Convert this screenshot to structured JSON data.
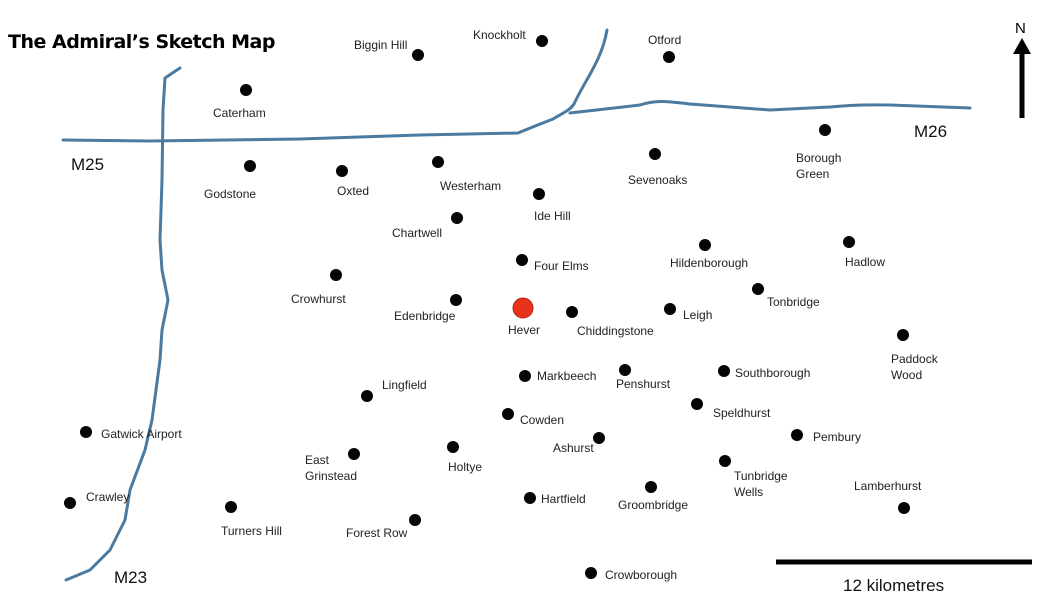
{
  "title": "The Admiral’s Sketch Map",
  "north_label": "N",
  "scale_label": "12 kilometres",
  "roads": [
    {
      "name": "M25",
      "label": "M25"
    },
    {
      "name": "M26",
      "label": "M26"
    },
    {
      "name": "M23",
      "label": "M23"
    }
  ],
  "colors": {
    "road": "#4a7aa0",
    "highlight": "#e8321c",
    "dot": "#050505"
  },
  "places": [
    {
      "name": "Biggin Hill",
      "lines": [
        "Biggin Hill"
      ]
    },
    {
      "name": "Knockholt",
      "lines": [
        "Knockholt"
      ]
    },
    {
      "name": "Otford",
      "lines": [
        "Otford"
      ]
    },
    {
      "name": "Caterham",
      "lines": [
        "Caterham"
      ]
    },
    {
      "name": "Borough Green",
      "lines": [
        "Borough",
        "Green"
      ]
    },
    {
      "name": "Godstone",
      "lines": [
        "Godstone"
      ]
    },
    {
      "name": "Oxted",
      "lines": [
        "Oxted"
      ]
    },
    {
      "name": "Westerham",
      "lines": [
        "Westerham"
      ]
    },
    {
      "name": "Sevenoaks",
      "lines": [
        "Sevenoaks"
      ]
    },
    {
      "name": "Ide Hill",
      "lines": [
        "Ide Hill"
      ]
    },
    {
      "name": "Chartwell",
      "lines": [
        "Chartwell"
      ]
    },
    {
      "name": "Four Elms",
      "lines": [
        "Four Elms"
      ]
    },
    {
      "name": "Hildenborough",
      "lines": [
        "Hildenborough"
      ]
    },
    {
      "name": "Hadlow",
      "lines": [
        "Hadlow"
      ]
    },
    {
      "name": "Crowhurst",
      "lines": [
        "Crowhurst"
      ]
    },
    {
      "name": "Edenbridge",
      "lines": [
        "Edenbridge"
      ]
    },
    {
      "name": "Hever",
      "lines": [
        "Hever"
      ],
      "highlight": true
    },
    {
      "name": "Chiddingstone",
      "lines": [
        "Chiddingstone"
      ]
    },
    {
      "name": "Leigh",
      "lines": [
        "Leigh"
      ]
    },
    {
      "name": "Tonbridge",
      "lines": [
        "Tonbridge"
      ]
    },
    {
      "name": "Paddock Wood",
      "lines": [
        "Paddock",
        "Wood"
      ]
    },
    {
      "name": "Lingfield",
      "lines": [
        "Lingfield"
      ]
    },
    {
      "name": "Markbeech",
      "lines": [
        "Markbeech"
      ]
    },
    {
      "name": "Penshurst",
      "lines": [
        "Penshurst"
      ]
    },
    {
      "name": "Southborough",
      "lines": [
        "Southborough"
      ]
    },
    {
      "name": "Cowden",
      "lines": [
        "Cowden"
      ]
    },
    {
      "name": "Speldhurst",
      "lines": [
        "Speldhurst"
      ]
    },
    {
      "name": "Gatwick Airport",
      "lines": [
        "Gatwick Airport"
      ]
    },
    {
      "name": "East Grinstead",
      "lines": [
        "East",
        "Grinstead"
      ]
    },
    {
      "name": "Holtye",
      "lines": [
        "Holtye"
      ]
    },
    {
      "name": "Ashurst",
      "lines": [
        "Ashurst"
      ]
    },
    {
      "name": "Pembury",
      "lines": [
        "Pembury"
      ]
    },
    {
      "name": "Tunbridge Wells",
      "lines": [
        "Tunbridge",
        "Wells"
      ]
    },
    {
      "name": "Crawley",
      "lines": [
        "Crawley"
      ]
    },
    {
      "name": "Turners Hill",
      "lines": [
        "Turners Hill"
      ]
    },
    {
      "name": "Hartfield",
      "lines": [
        "Hartfield"
      ]
    },
    {
      "name": "Groombridge",
      "lines": [
        "Groombridge"
      ]
    },
    {
      "name": "Lamberhurst",
      "lines": [
        "Lamberhurst"
      ]
    },
    {
      "name": "Forest Row",
      "lines": [
        "Forest Row"
      ]
    },
    {
      "name": "Crowborough",
      "lines": [
        "Crowborough"
      ]
    }
  ]
}
